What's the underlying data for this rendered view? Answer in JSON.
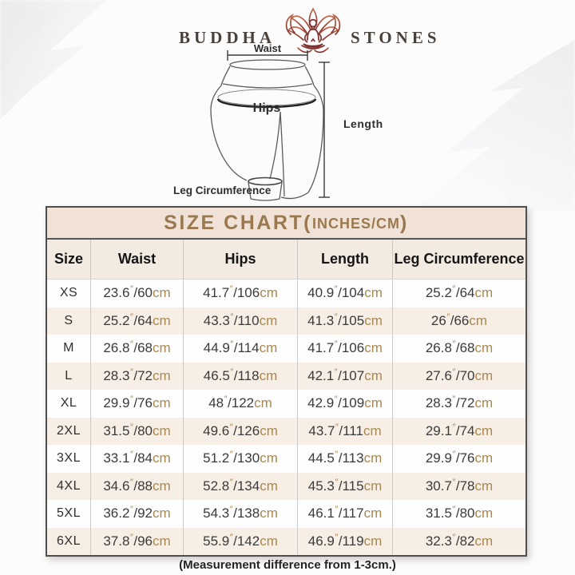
{
  "logo": {
    "word_left": "BUDDHA",
    "word_right": "STONES",
    "icon": "lotus-meditation-icon"
  },
  "diagram": {
    "labels": {
      "waist": "Waist",
      "hips": "Hips",
      "length": "Length",
      "leg_circumference": "Leg Circumference"
    }
  },
  "size_chart": {
    "title": {
      "main": "SIZE CHART",
      "open": "(",
      "units": "INCHES/CM",
      "close": ")"
    },
    "format": {
      "inch_mark": "″",
      "separator": "/",
      "cm_unit": "cm"
    },
    "columns": [
      "Size",
      "Waist",
      "Hips",
      "Length",
      "Leg Circumference"
    ],
    "rows": [
      {
        "size": "XS",
        "cells": [
          [
            "23.6",
            "60"
          ],
          [
            "41.7",
            "106"
          ],
          [
            "40.9",
            "104"
          ],
          [
            "25.2",
            "64"
          ]
        ]
      },
      {
        "size": "S",
        "cells": [
          [
            "25.2",
            "64"
          ],
          [
            "43.3",
            "110"
          ],
          [
            "41.3",
            "105"
          ],
          [
            "26",
            "66"
          ]
        ]
      },
      {
        "size": "M",
        "cells": [
          [
            "26.8",
            "68"
          ],
          [
            "44.9",
            "114"
          ],
          [
            "41.7",
            "106"
          ],
          [
            "26.8",
            "68"
          ]
        ]
      },
      {
        "size": "L",
        "cells": [
          [
            "28.3",
            "72"
          ],
          [
            "46.5",
            "118"
          ],
          [
            "42.1",
            "107"
          ],
          [
            "27.6",
            "70"
          ]
        ]
      },
      {
        "size": "XL",
        "cells": [
          [
            "29.9",
            "76"
          ],
          [
            "48",
            "122"
          ],
          [
            "42.9",
            "109"
          ],
          [
            "28.3",
            "72"
          ]
        ]
      },
      {
        "size": "2XL",
        "cells": [
          [
            "31.5",
            "80"
          ],
          [
            "49.6",
            "126"
          ],
          [
            "43.7",
            "111"
          ],
          [
            "29.1",
            "74"
          ]
        ]
      },
      {
        "size": "3XL",
        "cells": [
          [
            "33.1",
            "84"
          ],
          [
            "51.2",
            "130"
          ],
          [
            "44.5",
            "113"
          ],
          [
            "29.9",
            "76"
          ]
        ]
      },
      {
        "size": "4XL",
        "cells": [
          [
            "34.6",
            "88"
          ],
          [
            "52.8",
            "134"
          ],
          [
            "45.3",
            "115"
          ],
          [
            "30.7",
            "78"
          ]
        ]
      },
      {
        "size": "5XL",
        "cells": [
          [
            "36.2",
            "92"
          ],
          [
            "54.3",
            "138"
          ],
          [
            "46.1",
            "117"
          ],
          [
            "31.5",
            "80"
          ]
        ]
      },
      {
        "size": "6XL",
        "cells": [
          [
            "37.8",
            "96"
          ],
          [
            "55.9",
            "142"
          ],
          [
            "46.9",
            "119"
          ],
          [
            "32.3",
            "82"
          ]
        ]
      }
    ],
    "note": "(Measurement difference from 1-3cm.)"
  },
  "colors": {
    "title_gold": "#9b7950",
    "unit_tan": "#a8884f",
    "title_band_bg": "#f0e2d6",
    "header_row_bg": "#f3eae1",
    "stripe_row_bg": "#f7eee5",
    "table_border": "#4e4e4e",
    "dark_text": "#3a3a3a",
    "lotus_red": "#9c3a30"
  }
}
